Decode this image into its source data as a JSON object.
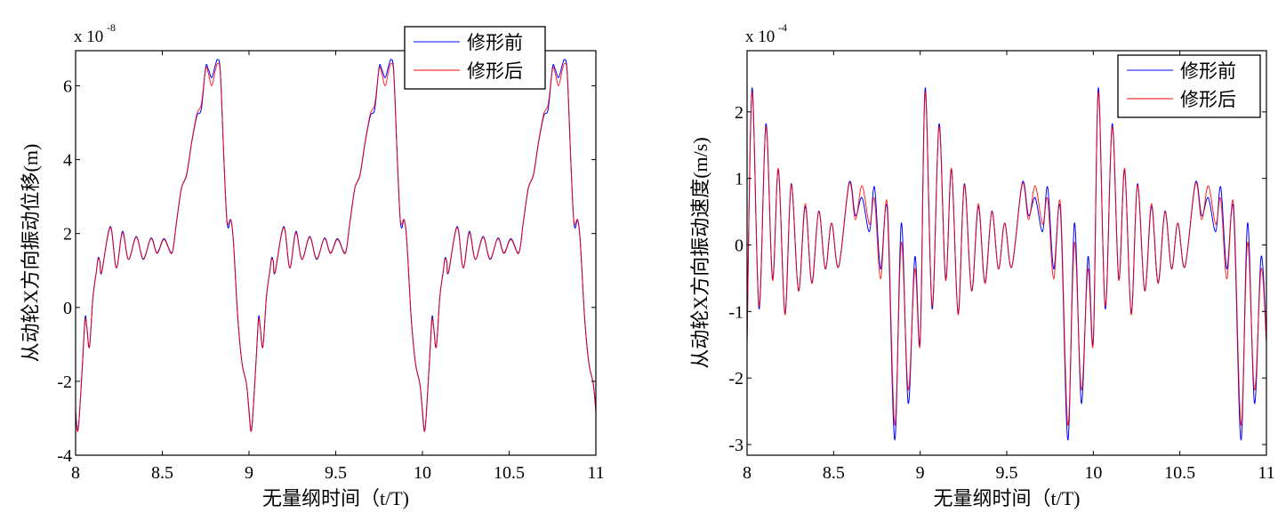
{
  "chart_data": [
    {
      "type": "line",
      "title": "",
      "xlabel": "无量纲时间（t/T)",
      "ylabel": "从动轮X方向振动位移(m)",
      "exponent_label": "x 10",
      "exponent": "-8",
      "xlim": [
        8,
        11
      ],
      "ylim": [
        -4,
        6.95
      ],
      "xticks": [
        8,
        8.5,
        9,
        9.5,
        10,
        10.5,
        11
      ],
      "xtick_labels": [
        "8",
        "8.5",
        "9",
        "9.5",
        "10",
        "10.5",
        "11"
      ],
      "yticks": [
        -4,
        -2,
        0,
        2,
        4,
        6
      ],
      "ytick_labels": [
        "-4",
        "-2",
        "0",
        "2",
        "4",
        "6"
      ],
      "grid": false,
      "legend": {
        "position": "top-right",
        "entries": [
          "修形前",
          "修形后"
        ]
      },
      "period": 1,
      "period_starts": [
        8,
        9,
        10
      ],
      "x_offset": [
        0,
        0.01,
        0.02,
        0.04,
        0.055,
        0.065,
        0.08,
        0.1,
        0.12,
        0.13,
        0.14,
        0.15,
        0.2,
        0.235,
        0.27,
        0.305,
        0.35,
        0.39,
        0.435,
        0.47,
        0.51,
        0.555,
        0.58,
        0.61,
        0.64,
        0.67,
        0.7,
        0.725,
        0.75,
        0.765,
        0.785,
        0.805,
        0.82,
        0.835,
        0.855,
        0.87,
        0.88,
        0.895,
        0.91,
        0.935,
        0.96,
        0.985
      ],
      "series": [
        {
          "name": "修形前",
          "color": "#0000ff",
          "y": [
            -2.78,
            -3.31,
            -3.04,
            -1.5,
            -0.27,
            -0.54,
            -1.07,
            0.27,
            0.98,
            1.34,
            1.25,
            0.94,
            2.19,
            1.07,
            2.06,
            1.3,
            1.92,
            1.3,
            1.88,
            1.48,
            1.86,
            1.48,
            2.24,
            3.22,
            3.58,
            4.48,
            5.19,
            5.37,
            6.5,
            6.45,
            6.22,
            6.54,
            6.71,
            6.35,
            4.03,
            2.51,
            2.15,
            2.37,
            1.79,
            -0.27,
            -1.52,
            -2.06
          ]
        },
        {
          "name": "修形后",
          "color": "#ff0000",
          "y": [
            -2.85,
            -3.35,
            -3.05,
            -1.5,
            -0.35,
            -0.55,
            -1.07,
            0.27,
            0.98,
            1.3,
            1.25,
            0.96,
            2.16,
            1.07,
            2.02,
            1.3,
            1.9,
            1.32,
            1.86,
            1.46,
            1.84,
            1.46,
            2.24,
            3.22,
            3.6,
            4.5,
            5.25,
            5.5,
            6.45,
            6.35,
            6.0,
            6.4,
            6.6,
            6.3,
            4.03,
            2.51,
            2.25,
            2.37,
            1.79,
            -0.27,
            -1.52,
            -2.06
          ]
        }
      ]
    },
    {
      "type": "line",
      "title": "",
      "xlabel": "无量纲时间（t/T)",
      "ylabel": "从动轮X方向振动速度(m/s)",
      "exponent_label": "x 10",
      "exponent": "-4",
      "xlim": [
        8,
        11
      ],
      "ylim": [
        -3.16,
        2.92
      ],
      "xticks": [
        8,
        8.5,
        9,
        9.5,
        10,
        10.5,
        11
      ],
      "xtick_labels": [
        "8",
        "8.5",
        "9",
        "9.5",
        "10",
        "10.5",
        "11"
      ],
      "yticks": [
        -3,
        -2,
        -1,
        0,
        1,
        2
      ],
      "ytick_labels": [
        "-3",
        "-2",
        "-1",
        "0",
        "1",
        "2"
      ],
      "grid": false,
      "legend": {
        "position": "top-right",
        "entries": [
          "修形前",
          "修形后"
        ]
      },
      "period": 1,
      "period_starts": [
        8,
        9,
        10
      ],
      "x_offset": [
        0,
        0.029,
        0.069,
        0.109,
        0.147,
        0.181,
        0.219,
        0.255,
        0.297,
        0.336,
        0.374,
        0.414,
        0.452,
        0.488,
        0.529,
        0.59,
        0.626,
        0.664,
        0.707,
        0.736,
        0.771,
        0.81,
        0.853,
        0.891,
        0.931,
        0.969
      ],
      "series": [
        {
          "name": "修形前",
          "color": "#0000ff",
          "y": [
            -1.44,
            2.36,
            -0.96,
            1.82,
            -0.51,
            1.13,
            -1.02,
            0.92,
            -0.69,
            0.58,
            -0.56,
            0.51,
            -0.36,
            0.33,
            -0.33,
            0.94,
            0.44,
            0.71,
            0.2,
            0.87,
            -0.36,
            0.53,
            -2.93,
            0.33,
            -2.38,
            -0.18
          ]
        },
        {
          "name": "修形后",
          "color": "#ff0000",
          "y": [
            -1.47,
            2.3,
            -0.92,
            1.78,
            -0.53,
            1.15,
            -1.05,
            0.9,
            -0.69,
            0.62,
            -0.58,
            0.5,
            -0.36,
            0.33,
            -0.33,
            0.92,
            0.38,
            0.89,
            0.31,
            0.69,
            -0.51,
            0.62,
            -2.71,
            0.04,
            -2.18,
            -0.36
          ]
        }
      ]
    }
  ]
}
